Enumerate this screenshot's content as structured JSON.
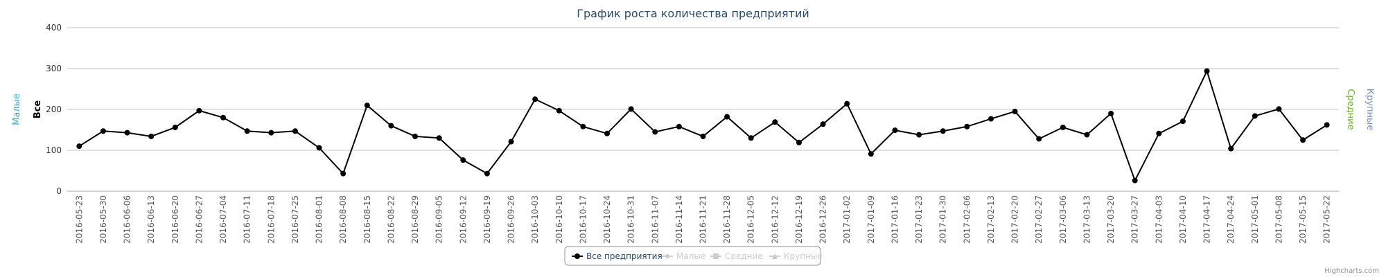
{
  "chart_data": {
    "type": "line",
    "title": "График роста количества предприятий",
    "left_axis_titles": [
      {
        "text": "Малые",
        "color": "#2fa8d0"
      },
      {
        "text": "Все",
        "color": "#000000"
      }
    ],
    "right_axis_titles": [
      {
        "text": "Средние",
        "color": "#66b922"
      },
      {
        "text": "Крупные",
        "color": "#7a8fcc"
      }
    ],
    "categories": [
      "2016-05-23",
      "2016-05-30",
      "2016-06-06",
      "2016-06-13",
      "2016-06-20",
      "2016-06-27",
      "2016-07-04",
      "2016-07-11",
      "2016-07-18",
      "2016-07-25",
      "2016-08-01",
      "2016-08-08",
      "2016-08-15",
      "2016-08-22",
      "2016-08-29",
      "2016-09-05",
      "2016-09-12",
      "2016-09-19",
      "2016-09-26",
      "2016-10-03",
      "2016-10-10",
      "2016-10-17",
      "2016-10-24",
      "2016-10-31",
      "2016-11-07",
      "2016-11-14",
      "2016-11-21",
      "2016-11-28",
      "2016-12-05",
      "2016-12-12",
      "2016-12-19",
      "2016-12-26",
      "2017-01-02",
      "2017-01-09",
      "2017-01-16",
      "2017-01-23",
      "2017-01-30",
      "2017-02-06",
      "2017-02-13",
      "2017-02-20",
      "2017-02-27",
      "2017-03-06",
      "2017-03-13",
      "2017-03-20",
      "2017-03-27",
      "2017-04-03",
      "2017-04-10",
      "2017-04-17",
      "2017-04-24",
      "2017-05-01",
      "2017-05-08",
      "2017-05-15",
      "2017-05-22"
    ],
    "series": [
      {
        "name": "Все предприятия",
        "color": "#000000",
        "visible": true,
        "values": [
          110,
          147,
          143,
          134,
          156,
          197,
          180,
          147,
          143,
          147,
          106,
          43,
          210,
          160,
          134,
          130,
          76,
          43,
          121,
          225,
          197,
          158,
          141,
          201,
          145,
          158,
          134,
          182,
          130,
          169,
          119,
          164,
          214,
          91,
          149,
          138,
          147,
          158,
          177,
          195,
          128,
          156,
          138,
          190,
          26,
          141,
          171,
          294,
          104,
          184,
          201,
          125,
          162
        ]
      },
      {
        "name": "Малые",
        "color": "#cccccc",
        "visible": false
      },
      {
        "name": "Средние",
        "color": "#cccccc",
        "visible": false
      },
      {
        "name": "Крупные",
        "color": "#cccccc",
        "visible": false
      }
    ],
    "ylim": [
      0,
      400
    ],
    "yticks": [
      0,
      100,
      200,
      300,
      400
    ],
    "grid": true,
    "legend": "bottom",
    "credits": "Highcharts.com"
  }
}
